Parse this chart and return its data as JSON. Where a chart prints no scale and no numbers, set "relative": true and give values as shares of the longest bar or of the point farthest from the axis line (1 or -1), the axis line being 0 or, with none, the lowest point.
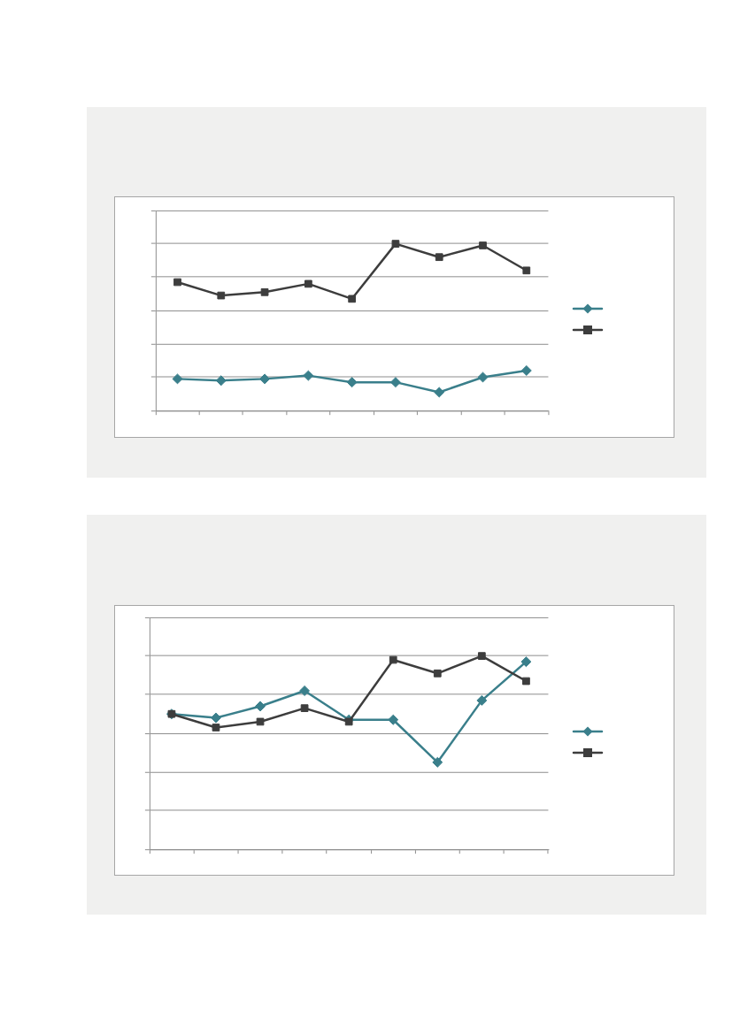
{
  "chart_data": [
    {
      "type": "line",
      "relative": true,
      "categories": [
        null,
        null,
        null,
        null,
        null,
        null,
        null,
        null,
        null
      ],
      "grid": "y",
      "series": [
        {
          "color": "#3a7f8b",
          "marker": "diamond",
          "values": [
            0.19,
            0.18,
            0.19,
            0.21,
            0.17,
            0.17,
            0.11,
            0.2,
            0.24
          ]
        },
        {
          "color": "#3d3d3d",
          "marker": "square",
          "values": [
            0.77,
            0.69,
            0.71,
            0.76,
            0.67,
            1,
            0.92,
            0.99,
            0.84
          ]
        }
      ]
    },
    {
      "type": "line",
      "relative": true,
      "categories": [
        null,
        null,
        null,
        null,
        null,
        null,
        null,
        null,
        null
      ],
      "grid": "y",
      "series": [
        {
          "color": "#3a7f8b",
          "marker": "diamond",
          "values": [
            0.7,
            0.68,
            0.74,
            0.82,
            0.67,
            0.67,
            0.45,
            0.77,
            0.97
          ]
        },
        {
          "color": "#3d3d3d",
          "marker": "square",
          "values": [
            0.7,
            0.63,
            0.66,
            0.73,
            0.66,
            0.98,
            0.91,
            1,
            0.87
          ]
        }
      ]
    }
  ]
}
